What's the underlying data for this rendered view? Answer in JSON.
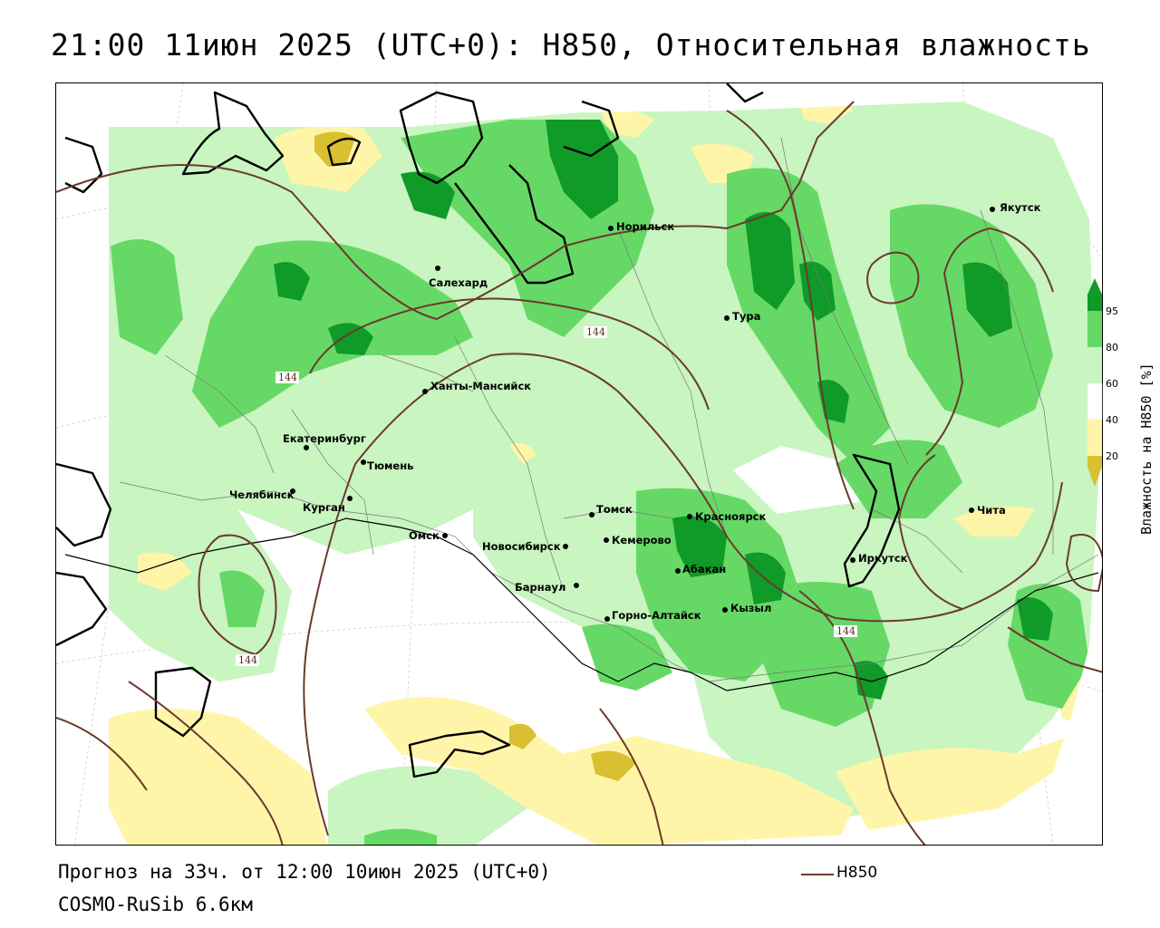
{
  "title": "21:00 11июн 2025 (UTC+0): H850, Относительная влажность",
  "footer": {
    "forecast": "Прогноз на 33ч. от 12:00 10июн 2025 (UTC+0)",
    "model": "COSMO-RuSib 6.6км"
  },
  "legend": {
    "line_label": "H850",
    "line_color": "#6b3a2e"
  },
  "colorbar": {
    "title": "Влажность на H850 [%]",
    "ticks": [
      "20",
      "40",
      "60",
      "80",
      "95"
    ],
    "colors": {
      "lt20": "#d8c030",
      "20_40": "#fff5a8",
      "40_60": "#ffffff",
      "60_80": "#c8f5c0",
      "80_95": "#66d866",
      "gt95": "#109a28"
    }
  },
  "contour_labels": [
    "144",
    "144",
    "144",
    "144"
  ],
  "cities": [
    {
      "name": "Якутск"
    },
    {
      "name": "Норильск"
    },
    {
      "name": "Салехард"
    },
    {
      "name": "Тура"
    },
    {
      "name": "Ханты-Мансийск"
    },
    {
      "name": "Екатеринбург"
    },
    {
      "name": "Тюмень"
    },
    {
      "name": "Челябинск"
    },
    {
      "name": "Курган"
    },
    {
      "name": "Омск"
    },
    {
      "name": "Новосибирск"
    },
    {
      "name": "Томск"
    },
    {
      "name": "Кемерово"
    },
    {
      "name": "Красноярск"
    },
    {
      "name": "Абакан"
    },
    {
      "name": "Барнаул"
    },
    {
      "name": "Горно-Алтайск"
    },
    {
      "name": "Кызыл"
    },
    {
      "name": "Иркутск"
    },
    {
      "name": "Чита"
    }
  ]
}
